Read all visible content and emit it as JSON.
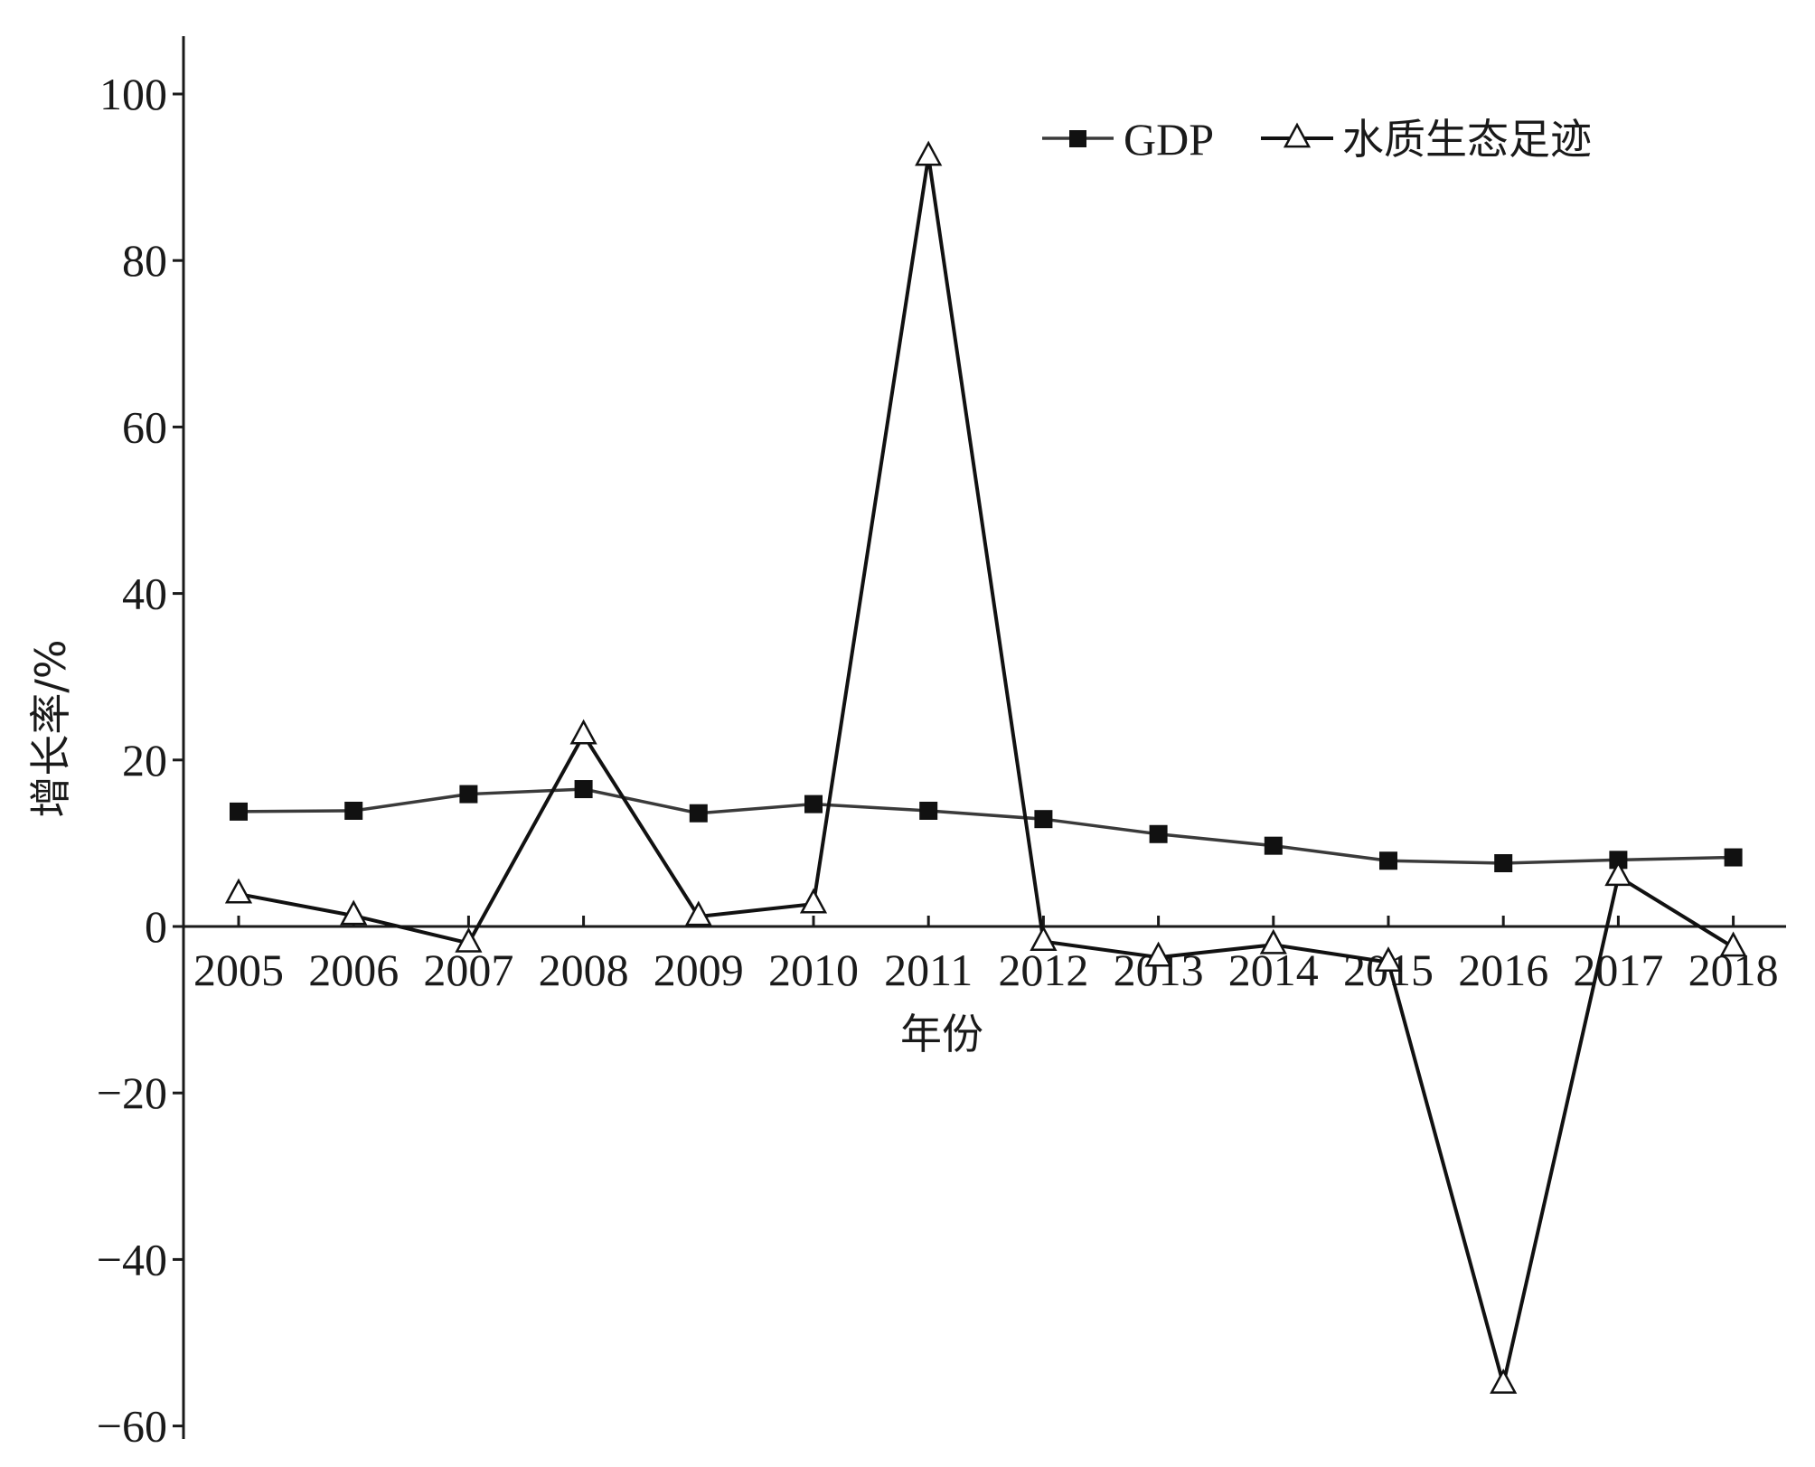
{
  "chart_data": {
    "type": "line",
    "xlabel": "年份",
    "ylabel": "增长率/%",
    "x": [
      "2005",
      "2006",
      "2007",
      "2008",
      "2009",
      "2010",
      "2011",
      "2012",
      "2013",
      "2014",
      "2015",
      "2016",
      "2017",
      "2018"
    ],
    "ylim": [
      -60,
      107
    ],
    "yticks": [
      "−60",
      "−40",
      "−20",
      "0",
      "20",
      "40",
      "60",
      "80",
      "100"
    ],
    "ytick_values": [
      -60,
      -40,
      -20,
      0,
      20,
      40,
      60,
      80,
      100
    ],
    "grid": false,
    "legend_position": "top-right",
    "series": [
      {
        "name": "GDP",
        "marker": "filled-square",
        "color": "#3a3a3a",
        "values": [
          13.8,
          13.9,
          15.9,
          16.5,
          13.6,
          14.7,
          13.9,
          12.9,
          11.1,
          9.7,
          7.9,
          7.6,
          8.0,
          8.3
        ]
      },
      {
        "name": "水质生态足迹",
        "marker": "open-triangle",
        "color": "#111111",
        "values": [
          3.9,
          1.3,
          -2.0,
          23.0,
          1.2,
          2.7,
          92.5,
          -1.8,
          -3.7,
          -2.2,
          -4.3,
          -55.0,
          6.0,
          -2.5
        ]
      }
    ]
  }
}
